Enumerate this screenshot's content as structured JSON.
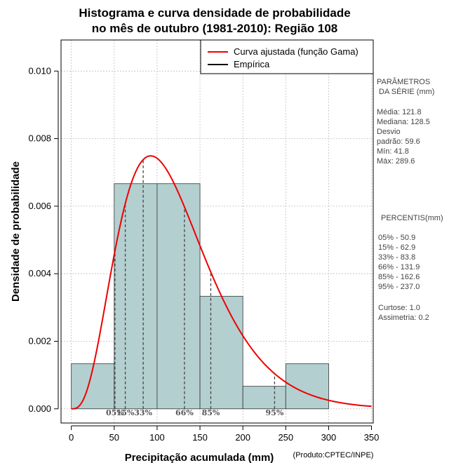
{
  "chart_data": {
    "type": "bar",
    "title_line1": "Histograma e curva densidade de probabilidade",
    "title_line2": "no mês de outubro (1981-2010): Região 108",
    "xlabel": "Precipitação acumulada (mm)",
    "ylabel": "Densidade de probabilidade",
    "credit": "(Produto:CPTEC/INPE)",
    "xlim": [
      -12,
      352
    ],
    "ylim": [
      -0.00042,
      0.01092
    ],
    "x_ticks": [
      0,
      50,
      100,
      150,
      200,
      250,
      300,
      350
    ],
    "y_ticks": [
      0.0,
      0.002,
      0.004,
      0.006,
      0.008,
      0.01
    ],
    "y_tick_labels": [
      "0.000",
      "0.002",
      "0.004",
      "0.006",
      "0.008",
      "0.010"
    ],
    "grid": true,
    "legend_position": "top-right",
    "legend": [
      {
        "label": "Curva ajustada (função Gama)",
        "color": "#ee0000"
      },
      {
        "label": "Empírica",
        "color": "#000000"
      }
    ],
    "histogram": {
      "bin_edges": [
        0,
        50,
        100,
        150,
        200,
        250,
        300
      ],
      "density": [
        0.001333,
        0.006667,
        0.006667,
        0.003333,
        0.000667,
        0.001333
      ],
      "fill_color": "#b4cfd0"
    },
    "gamma_fit": {
      "shape": 4.18,
      "scale": 29.1,
      "color": "#ee0000"
    },
    "percentiles": [
      {
        "label": "05%",
        "value": 50.9
      },
      {
        "label": "15%",
        "value": 62.9
      },
      {
        "label": "33%",
        "value": 83.8
      },
      {
        "label": "66%",
        "value": 131.9
      },
      {
        "label": "85%",
        "value": 162.6
      },
      {
        "label": "95%",
        "value": 237.0
      }
    ]
  },
  "side_panel": {
    "params_heading_line1": "PARÂMETROS",
    "params_heading_line2": "DA SÉRIE (mm)",
    "media": "Média:  121.8",
    "mediana": "Mediana:  128.5",
    "desvio_line1": "Desvio",
    "desvio_line2": "padrão:  59.6",
    "min": "Mín:  41.8",
    "max": "Máx:  289.6",
    "percentis_heading": "PERCENTIS(mm)",
    "p05": "05% -  50.9",
    "p15": "15% -  62.9",
    "p33": "33% -  83.8",
    "p66": "66% -  131.9",
    "p85": "85% -  162.6",
    "p95": "95% -  237.0",
    "curtose": "Curtose:  1.0",
    "assimetria": "Assimetria:  0.2"
  }
}
